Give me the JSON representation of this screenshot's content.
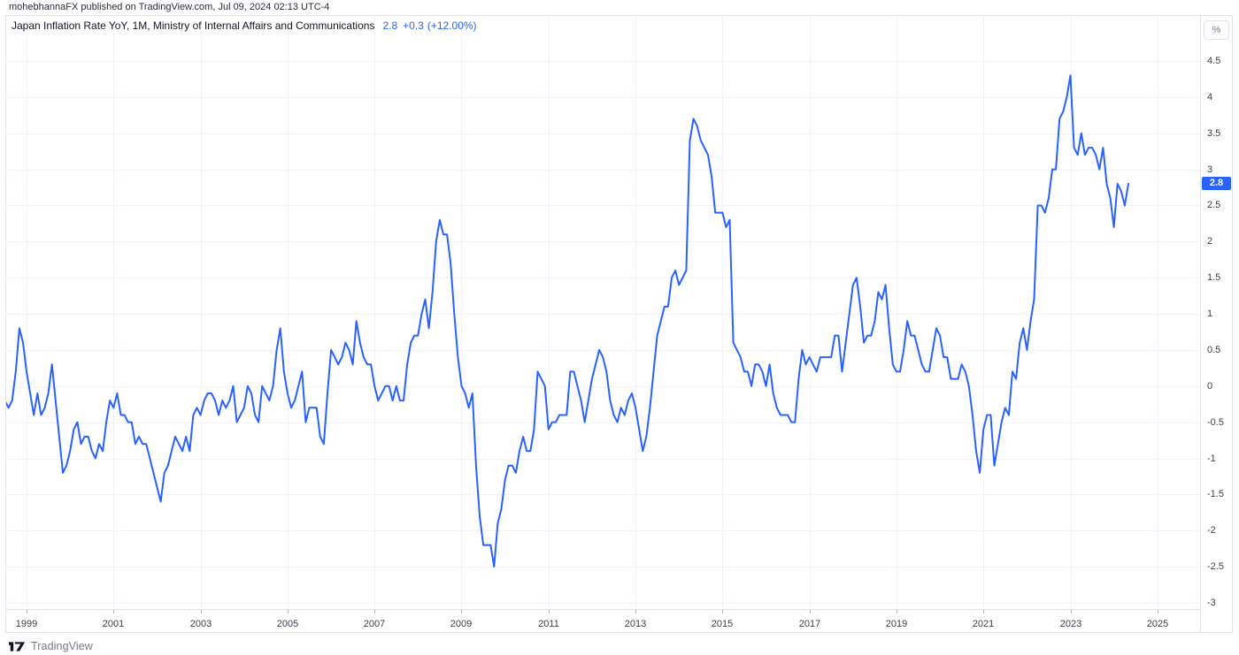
{
  "page": {
    "top_attribution": "mohebhannaFX published on TradingView.com, Jul 09, 2024 02:13 UTC-4",
    "bottom_logo_text": "TradingView"
  },
  "widget": {
    "legend": {
      "title": "Japan Inflation Rate YoY, 1M, Ministry of Internal Affairs and Communications",
      "last_value": "2.8",
      "change": "+0.3",
      "change_pct": "(+12.00%)"
    },
    "price_axis": {
      "unit_button": "%",
      "last_price_badge": "2.8",
      "tick_labels": [
        "4.5",
        "4",
        "3.5",
        "3",
        "2.5",
        "2",
        "1.5",
        "1",
        "0.5",
        "0",
        "-0.5",
        "-1",
        "-1.5",
        "-2",
        "-2.5",
        "-3"
      ]
    },
    "time_axis": {
      "tick_labels": [
        "1999",
        "2001",
        "2003",
        "2005",
        "2007",
        "2009",
        "2011",
        "2013",
        "2015",
        "2017",
        "2019",
        "2021",
        "2023",
        "2025"
      ]
    }
  },
  "colors": {
    "accent_blue": "#2962FF",
    "badge_bg": "#2962FF",
    "grid": "#f0f3fa",
    "border": "#e0e3eb",
    "text_dark": "#131722",
    "text_axis": "#3c4049",
    "text_muted": "#787b86"
  },
  "chart_data": {
    "type": "line",
    "title": "Japan Inflation Rate YoY",
    "source": "Ministry of Internal Affairs and Communications",
    "unit": "%",
    "frequency": "monthly",
    "x_start": "1998-07",
    "x_end": "2024-05",
    "xlim_years": [
      1998.531,
      2025.981
    ],
    "ylim": [
      -3.086,
      5.124
    ],
    "y_ticks": [
      4.5,
      4,
      3.5,
      3,
      2.5,
      2,
      1.5,
      1,
      0.5,
      0,
      -0.5,
      -1,
      -1.5,
      -2,
      -2.5,
      -3
    ],
    "x_ticks_years": [
      1999,
      2001,
      2003,
      2005,
      2007,
      2009,
      2011,
      2013,
      2015,
      2017,
      2019,
      2021,
      2023,
      2025
    ],
    "grid": true,
    "legend_position": "top-left",
    "last": {
      "value": 2.8,
      "change": 0.3,
      "change_pct": 12.0
    },
    "series": [
      {
        "name": "Japan Inflation Rate YoY (%)",
        "color": "#2962FF",
        "start_year": 1998,
        "start_month": 7,
        "values": [
          -0.2,
          -0.3,
          -0.2,
          0.2,
          0.8,
          0.6,
          0.2,
          -0.1,
          -0.4,
          -0.1,
          -0.4,
          -0.3,
          -0.1,
          0.3,
          -0.2,
          -0.7,
          -1.2,
          -1.1,
          -0.9,
          -0.6,
          -0.5,
          -0.8,
          -0.7,
          -0.7,
          -0.9,
          -1.0,
          -0.8,
          -0.9,
          -0.5,
          -0.2,
          -0.3,
          -0.1,
          -0.4,
          -0.4,
          -0.5,
          -0.5,
          -0.8,
          -0.7,
          -0.8,
          -0.8,
          -1.0,
          -1.2,
          -1.4,
          -1.6,
          -1.2,
          -1.1,
          -0.9,
          -0.7,
          -0.8,
          -0.9,
          -0.7,
          -0.9,
          -0.4,
          -0.3,
          -0.4,
          -0.2,
          -0.1,
          -0.1,
          -0.2,
          -0.4,
          -0.2,
          -0.3,
          -0.2,
          0.0,
          -0.5,
          -0.4,
          -0.3,
          0.0,
          -0.1,
          -0.4,
          -0.5,
          0.0,
          -0.1,
          -0.2,
          0.0,
          0.5,
          0.8,
          0.2,
          -0.1,
          -0.3,
          -0.2,
          0.0,
          0.2,
          -0.5,
          -0.3,
          -0.3,
          -0.3,
          -0.7,
          -0.8,
          -0.1,
          0.5,
          0.4,
          0.3,
          0.4,
          0.6,
          0.5,
          0.3,
          0.9,
          0.6,
          0.4,
          0.3,
          0.3,
          0.0,
          -0.2,
          -0.1,
          0.0,
          0.0,
          -0.2,
          0.0,
          -0.2,
          -0.2,
          0.3,
          0.6,
          0.7,
          0.7,
          1.0,
          1.2,
          0.8,
          1.3,
          2.0,
          2.3,
          2.1,
          2.1,
          1.7,
          1.0,
          0.4,
          0.0,
          -0.1,
          -0.3,
          -0.1,
          -1.1,
          -1.8,
          -2.2,
          -2.2,
          -2.2,
          -2.5,
          -1.9,
          -1.7,
          -1.3,
          -1.1,
          -1.1,
          -1.2,
          -0.9,
          -0.7,
          -0.9,
          -0.9,
          -0.6,
          0.2,
          0.1,
          0.0,
          -0.6,
          -0.5,
          -0.5,
          -0.4,
          -0.4,
          -0.4,
          0.2,
          0.2,
          0.0,
          -0.2,
          -0.5,
          -0.2,
          0.1,
          0.3,
          0.5,
          0.4,
          0.2,
          -0.2,
          -0.4,
          -0.5,
          -0.3,
          -0.4,
          -0.2,
          -0.1,
          -0.3,
          -0.6,
          -0.9,
          -0.7,
          -0.3,
          0.2,
          0.7,
          0.9,
          1.1,
          1.1,
          1.5,
          1.6,
          1.4,
          1.5,
          1.6,
          3.4,
          3.7,
          3.6,
          3.4,
          3.3,
          3.2,
          2.9,
          2.4,
          2.4,
          2.4,
          2.2,
          2.3,
          0.6,
          0.5,
          0.4,
          0.2,
          0.2,
          0.0,
          0.3,
          0.3,
          0.2,
          0.0,
          0.3,
          -0.1,
          -0.3,
          -0.4,
          -0.4,
          -0.4,
          -0.5,
          -0.5,
          0.1,
          0.5,
          0.3,
          0.4,
          0.3,
          0.2,
          0.4,
          0.4,
          0.4,
          0.4,
          0.7,
          0.7,
          0.2,
          0.6,
          1.0,
          1.4,
          1.5,
          1.1,
          0.6,
          0.7,
          0.7,
          0.9,
          1.3,
          1.2,
          1.4,
          0.8,
          0.3,
          0.2,
          0.2,
          0.5,
          0.9,
          0.7,
          0.7,
          0.5,
          0.3,
          0.2,
          0.2,
          0.5,
          0.8,
          0.7,
          0.4,
          0.4,
          0.1,
          0.1,
          0.1,
          0.3,
          0.2,
          0.0,
          -0.4,
          -0.9,
          -1.2,
          -0.6,
          -0.4,
          -0.4,
          -1.1,
          -0.8,
          -0.5,
          -0.3,
          -0.4,
          0.2,
          0.1,
          0.6,
          0.8,
          0.5,
          0.9,
          1.2,
          2.5,
          2.5,
          2.4,
          2.6,
          3.0,
          3.0,
          3.7,
          3.8,
          4.0,
          4.3,
          3.3,
          3.2,
          3.5,
          3.2,
          3.3,
          3.3,
          3.2,
          3.0,
          3.3,
          2.8,
          2.6,
          2.2,
          2.8,
          2.7,
          2.5,
          2.8
        ]
      }
    ]
  }
}
